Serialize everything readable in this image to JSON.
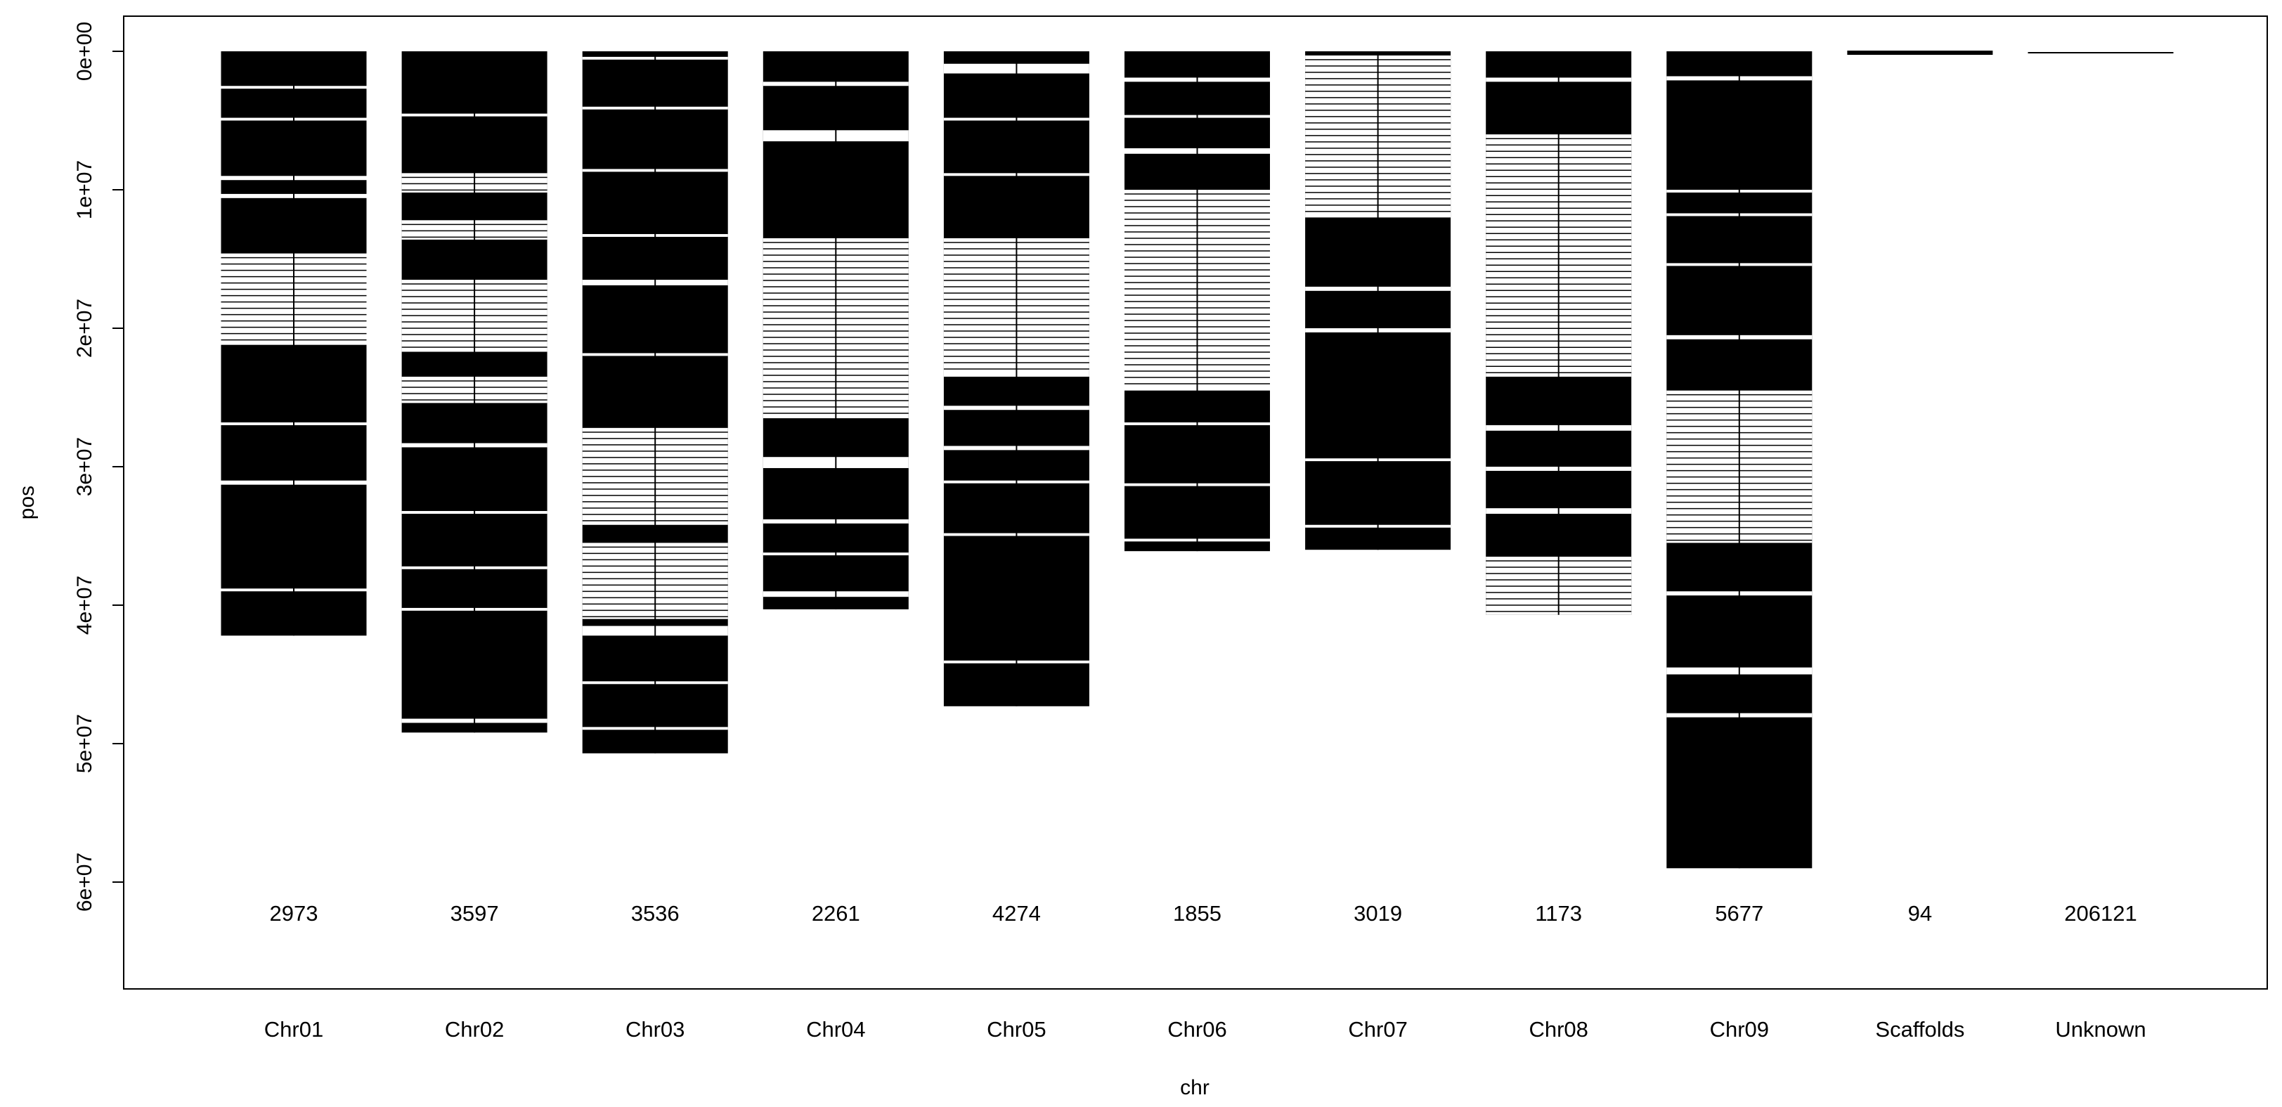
{
  "chart_data": {
    "type": "bar",
    "xlabel": "chr",
    "ylabel": "pos",
    "ylim": [
      0,
      65000000
    ],
    "yaxis_reversed": true,
    "grid": false,
    "legend": "none",
    "yticks": [
      {
        "value": 0,
        "label": "0e+00"
      },
      {
        "value": 10000000,
        "label": "1e+07"
      },
      {
        "value": 20000000,
        "label": "2e+07"
      },
      {
        "value": 30000000,
        "label": "3e+07"
      },
      {
        "value": 40000000,
        "label": "4e+07"
      },
      {
        "value": 50000000,
        "label": "5e+07"
      },
      {
        "value": 60000000,
        "label": "6e+07"
      }
    ],
    "categories": [
      "Chr01",
      "Chr02",
      "Chr03",
      "Chr04",
      "Chr05",
      "Chr06",
      "Chr07",
      "Chr08",
      "Chr09",
      "Scaffolds",
      "Unknown"
    ],
    "counts": [
      "2973",
      "3597",
      "3536",
      "2261",
      "4274",
      "1855",
      "3019",
      "1173",
      "5677",
      "94",
      "206121"
    ],
    "lengths": [
      42200000,
      49200000,
      50700000,
      40300000,
      47300000,
      36100000,
      36000000,
      40700000,
      59000000,
      0,
      0
    ],
    "gaps": [
      [
        [
          2500000.0,
          2700000.0
        ],
        [
          4800000.0,
          5000000.0
        ],
        [
          9000000.0,
          9300000.0
        ],
        [
          10300000.0,
          10600000.0
        ],
        [
          14600000.0,
          21200000.0
        ],
        [
          26800000.0,
          27000000.0
        ],
        [
          31000000.0,
          31300000.0
        ],
        [
          38800000.0,
          39000000.0
        ]
      ],
      [
        [
          4500000.0,
          4700000.0
        ],
        [
          8800000.0,
          10200000.0
        ],
        [
          12200000.0,
          13600000.0
        ],
        [
          16500000.0,
          21700000.0
        ],
        [
          23500000.0,
          25400000.0
        ],
        [
          28300000.0,
          28600000.0
        ],
        [
          33200000.0,
          33400000.0
        ],
        [
          37200000.0,
          37400000.0
        ],
        [
          40200000.0,
          40400000.0
        ],
        [
          48200000.0,
          48500000.0
        ]
      ],
      [
        [
          400000.0,
          600000.0
        ],
        [
          4000000.0,
          4200000.0
        ],
        [
          8500000.0,
          8700000.0
        ],
        [
          13200000.0,
          13400000.0
        ],
        [
          16500000.0,
          16900000.0
        ],
        [
          21800000.0,
          22000000.0
        ],
        [
          27200000.0,
          34200000.0
        ],
        [
          35500000.0,
          41000000.0
        ],
        [
          41500000.0,
          42200000.0
        ],
        [
          45500000.0,
          45700000.0
        ],
        [
          48800000.0,
          49000000.0
        ]
      ],
      [
        [
          2200000.0,
          2500000.0
        ],
        [
          5700000.0,
          6500000.0
        ],
        [
          13500000.0,
          26500000.0
        ],
        [
          29300000.0,
          30100000.0
        ],
        [
          33800000.0,
          34100000.0
        ],
        [
          36200000.0,
          36400000.0
        ],
        [
          39000000.0,
          39400000.0
        ]
      ],
      [
        [
          900000.0,
          1600000.0
        ],
        [
          4800000.0,
          5000000.0
        ],
        [
          8800000.0,
          9000000.0
        ],
        [
          13500000.0,
          23500000.0
        ],
        [
          25600000.0,
          25900000.0
        ],
        [
          28500000.0,
          28800000.0
        ],
        [
          31000000.0,
          31200000.0
        ],
        [
          34800000.0,
          35000000.0
        ],
        [
          44000000.0,
          44200000.0
        ]
      ],
      [
        [
          1900000.0,
          2200000.0
        ],
        [
          4600000.0,
          4800000.0
        ],
        [
          7000000.0,
          7400000.0
        ],
        [
          10000000.0,
          24500000.0
        ],
        [
          26800000.0,
          27000000.0
        ],
        [
          31200000.0,
          31400000.0
        ],
        [
          35200000.0,
          35400000.0
        ]
      ],
      [
        [
          300000.0,
          12000000.0
        ],
        [
          17000000.0,
          17300000.0
        ],
        [
          20000000.0,
          20300000.0
        ],
        [
          29400000.0,
          29600000.0
        ],
        [
          34200000.0,
          34400000.0
        ]
      ],
      [
        [
          1900000.0,
          2200000.0
        ],
        [
          6000000.0,
          23500000.0
        ],
        [
          27000000.0,
          27400000.0
        ],
        [
          30000000.0,
          30300000.0
        ],
        [
          33000000.0,
          33400000.0
        ],
        [
          36500000.0,
          40700000.0
        ]
      ],
      [
        [
          1800000.0,
          2100000.0
        ],
        [
          10000000.0,
          10200000.0
        ],
        [
          11700000.0,
          11900000.0
        ],
        [
          15300000.0,
          15500000.0
        ],
        [
          20500000.0,
          20800000.0
        ],
        [
          24500000.0,
          35500000.0
        ],
        [
          39000000.0,
          39300000.0
        ],
        [
          44500000.0,
          45000000.0
        ],
        [
          47800000.0,
          48100000.0
        ]
      ],
      [],
      []
    ],
    "markers": [
      {
        "category": "Scaffolds",
        "pos": 0,
        "weight": "thick"
      },
      {
        "category": "Unknown",
        "pos": 0,
        "weight": "thin"
      }
    ]
  }
}
